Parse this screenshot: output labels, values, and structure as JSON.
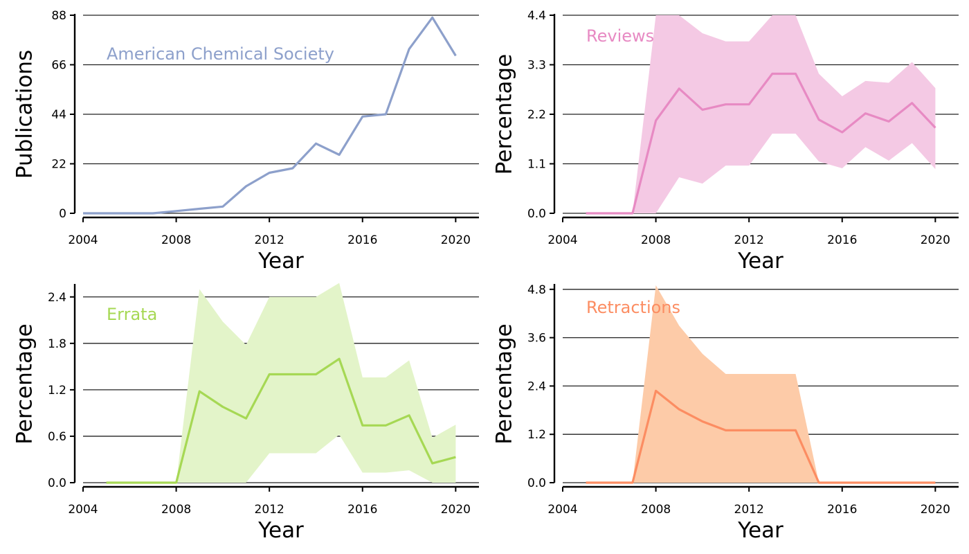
{
  "chart_data": [
    {
      "type": "line",
      "title": "American Chemical Society",
      "xlabel": "Year",
      "ylabel": "Publications",
      "color": "#8da0cb",
      "band": false,
      "xlim": [
        2004,
        2021
      ],
      "ylim": [
        0,
        88
      ],
      "xticks": [
        "2004",
        "2008",
        "2012",
        "2016",
        "2020"
      ],
      "yticks": [
        "0",
        "22",
        "44",
        "66",
        "88"
      ],
      "x": [
        2004,
        2005,
        2006,
        2007,
        2008,
        2009,
        2010,
        2011,
        2012,
        2013,
        2014,
        2015,
        2016,
        2017,
        2018,
        2019,
        2020
      ],
      "values": [
        0,
        0,
        0,
        0,
        1,
        2,
        3,
        12,
        18,
        20,
        31,
        26,
        43,
        44,
        73,
        87,
        70
      ]
    },
    {
      "type": "area",
      "title": "Reviews",
      "xlabel": "Year",
      "ylabel": "Percentage",
      "color": "#e78ac3",
      "band": true,
      "band_color": "#f4c9e4",
      "xlim": [
        2004,
        2021
      ],
      "ylim": [
        0,
        4.4
      ],
      "xticks": [
        "2004",
        "2008",
        "2012",
        "2016",
        "2020"
      ],
      "yticks": [
        "0.0",
        "1.1",
        "2.2",
        "3.3",
        "4.4"
      ],
      "x": [
        2005,
        2006,
        2007,
        2008,
        2009,
        2010,
        2011,
        2012,
        2013,
        2014,
        2015,
        2016,
        2017,
        2018,
        2019,
        2020
      ],
      "values": [
        0.0,
        0.0,
        0.0,
        2.06,
        2.77,
        2.3,
        2.42,
        2.42,
        3.1,
        3.1,
        2.08,
        1.8,
        2.22,
        2.04,
        2.45,
        1.9
      ],
      "lower": [
        0.0,
        0.0,
        0.0,
        0.0,
        0.8,
        0.66,
        1.06,
        1.06,
        1.77,
        1.77,
        1.15,
        1.0,
        1.47,
        1.17,
        1.56,
        0.98
      ],
      "upper": [
        0.0,
        0.0,
        0.0,
        4.4,
        4.4,
        4.0,
        3.82,
        3.82,
        4.4,
        4.4,
        3.1,
        2.6,
        2.94,
        2.9,
        3.36,
        2.78
      ]
    },
    {
      "type": "area",
      "title": "Errata",
      "xlabel": "Year",
      "ylabel": "Percentage",
      "color": "#a6d854",
      "band": true,
      "band_color": "#e3f4c9",
      "xlim": [
        2004,
        2021
      ],
      "ylim": [
        0,
        2.55
      ],
      "xticks": [
        "2004",
        "2008",
        "2012",
        "2016",
        "2020"
      ],
      "yticks": [
        "0.0",
        "0.6",
        "1.2",
        "1.8",
        "2.4"
      ],
      "x": [
        2005,
        2006,
        2007,
        2008,
        2009,
        2010,
        2011,
        2012,
        2013,
        2014,
        2015,
        2016,
        2017,
        2018,
        2019,
        2020
      ],
      "values": [
        0.0,
        0.0,
        0.0,
        0.0,
        1.18,
        0.98,
        0.83,
        1.4,
        1.4,
        1.4,
        1.6,
        0.74,
        0.74,
        0.87,
        0.25,
        0.33
      ],
      "lower": [
        0.0,
        0.0,
        0.0,
        0.0,
        0.0,
        0.0,
        0.0,
        0.38,
        0.38,
        0.38,
        0.62,
        0.13,
        0.13,
        0.16,
        0.0,
        0.0
      ],
      "upper": [
        0.0,
        0.0,
        0.0,
        0.0,
        2.5,
        2.08,
        1.78,
        2.4,
        2.4,
        2.4,
        2.58,
        1.36,
        1.36,
        1.58,
        0.58,
        0.75
      ]
    },
    {
      "type": "area",
      "title": "Retractions",
      "xlabel": "Year",
      "ylabel": "Percentage",
      "color": "#fc8d62",
      "band": true,
      "band_color": "#fdcba8",
      "xlim": [
        2004,
        2021
      ],
      "ylim": [
        0,
        4.9
      ],
      "xticks": [
        "2004",
        "2008",
        "2012",
        "2016",
        "2020"
      ],
      "yticks": [
        "0.0",
        "1.2",
        "2.4",
        "3.6",
        "4.8"
      ],
      "x": [
        2005,
        2006,
        2007,
        2008,
        2009,
        2010,
        2011,
        2012,
        2013,
        2014,
        2015,
        2016,
        2017,
        2018,
        2019,
        2020
      ],
      "values": [
        0.0,
        0.0,
        0.0,
        2.28,
        1.82,
        1.52,
        1.3,
        1.3,
        1.3,
        1.3,
        0.0,
        0.0,
        0.0,
        0.0,
        0.0,
        0.0
      ],
      "lower": [
        0.0,
        0.0,
        0.0,
        0.0,
        0.0,
        0.0,
        0.0,
        0.0,
        0.0,
        0.0,
        0.0,
        0.0,
        0.0,
        0.0,
        0.0,
        0.0
      ],
      "upper": [
        0.0,
        0.0,
        0.0,
        4.9,
        3.9,
        3.2,
        2.7,
        2.7,
        2.7,
        2.7,
        0.0,
        0.0,
        0.0,
        0.0,
        0.0,
        0.0
      ]
    }
  ]
}
